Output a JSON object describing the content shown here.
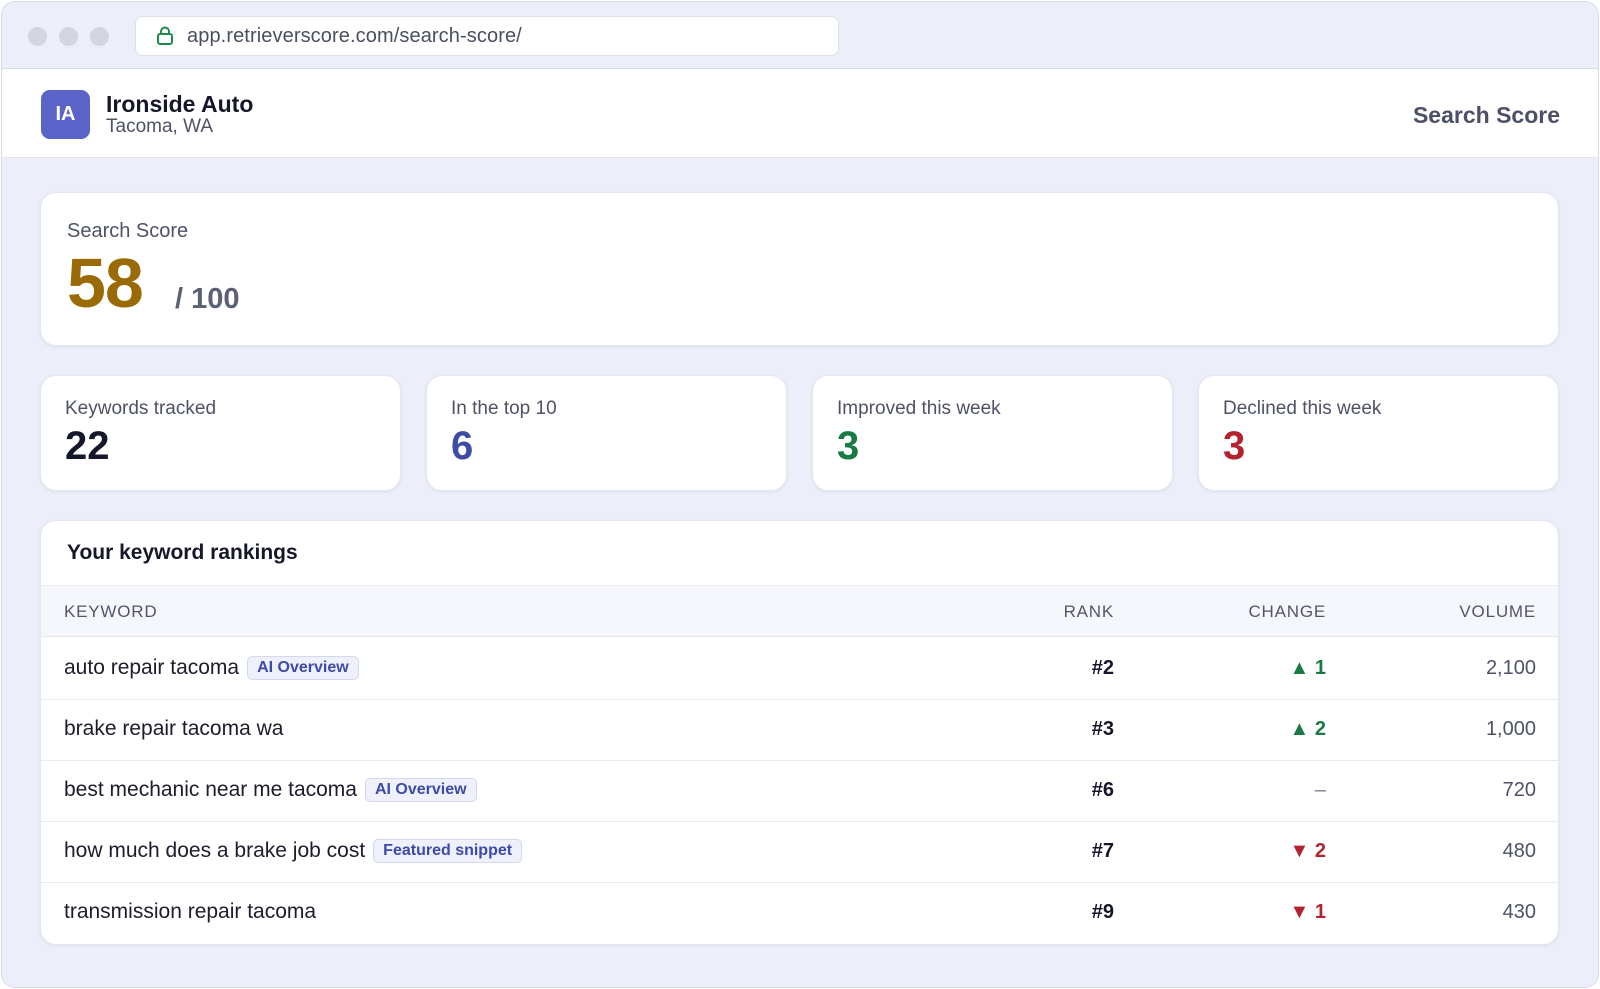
{
  "browser": {
    "url": "app.retrieverscore.com/search-score/"
  },
  "header": {
    "avatar_initials": "IA",
    "business_name": "Ironside Auto",
    "location": "Tacoma, WA",
    "page_label": "Search Score"
  },
  "score": {
    "label": "Search Score",
    "value": "58",
    "out_of": "/ 100",
    "value_color": "#9a6a06"
  },
  "stats": [
    {
      "label": "Keywords tracked",
      "value": "22",
      "color": "#15172a"
    },
    {
      "label": "In the top 10",
      "value": "6",
      "color": "#3d4aa6"
    },
    {
      "label": "Improved this week",
      "value": "3",
      "color": "#1a7a43"
    },
    {
      "label": "Declined this week",
      "value": "3",
      "color": "#b3232f"
    }
  ],
  "rankings": {
    "title": "Your keyword rankings",
    "columns": {
      "keyword": "KEYWORD",
      "rank": "RANK",
      "change": "CHANGE",
      "volume": "VOLUME"
    },
    "rows": [
      {
        "keyword": "auto repair tacoma",
        "badge": "AI Overview",
        "rank": "#2",
        "change": "▲ 1",
        "direction": "up",
        "volume": "2,100"
      },
      {
        "keyword": "brake repair tacoma wa",
        "badge": "",
        "rank": "#3",
        "change": "▲ 2",
        "direction": "up",
        "volume": "1,000"
      },
      {
        "keyword": "best mechanic near me tacoma",
        "badge": "AI Overview",
        "rank": "#6",
        "change": "–",
        "direction": "none",
        "volume": "720"
      },
      {
        "keyword": "how much does a brake job cost",
        "badge": "Featured snippet",
        "rank": "#7",
        "change": "▼ 2",
        "direction": "down",
        "volume": "480"
      },
      {
        "keyword": "transmission repair tacoma",
        "badge": "",
        "rank": "#9",
        "change": "▼ 1",
        "direction": "down",
        "volume": "430"
      }
    ]
  }
}
